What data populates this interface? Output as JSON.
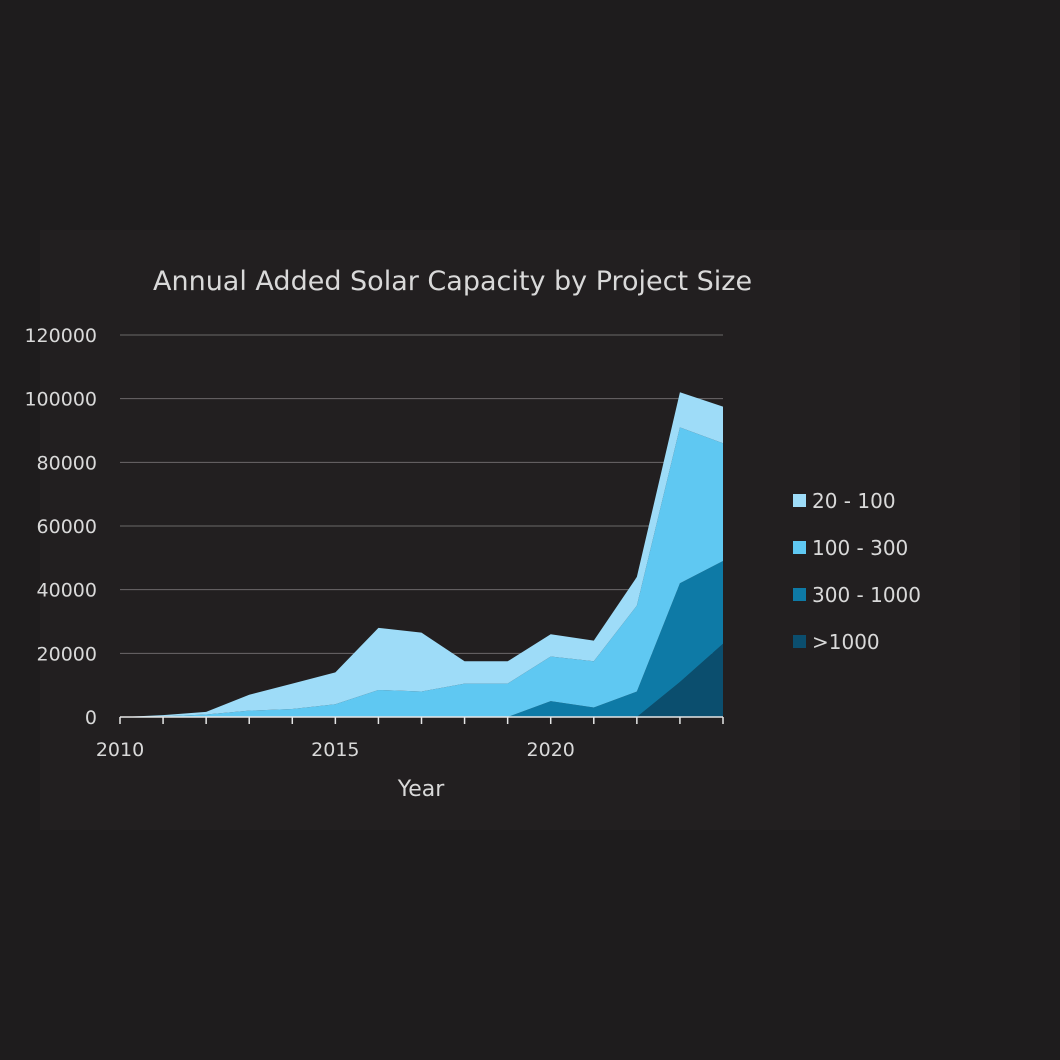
{
  "chart_data": {
    "type": "area",
    "stacked": true,
    "title": "Annual Added Solar Capacity by Project Size",
    "xlabel": "Year",
    "ylabel": "",
    "x": [
      2010,
      2011,
      2012,
      2013,
      2014,
      2015,
      2016,
      2017,
      2018,
      2019,
      2020,
      2021,
      2022,
      2023,
      2024
    ],
    "xlim": [
      2010,
      2024
    ],
    "ylim": [
      0,
      120000
    ],
    "x_ticks": [
      2010,
      2015,
      2020
    ],
    "y_ticks": [
      0,
      20000,
      40000,
      60000,
      80000,
      100000,
      120000
    ],
    "y_tick_labels": [
      "0",
      "20000",
      "40000",
      "60000",
      "80000",
      "100000",
      "120000"
    ],
    "grid": true,
    "legend_position": "right",
    "series": [
      {
        "name": ">1000",
        "color": "#0b4e6e",
        "values": [
          0,
          0,
          0,
          0,
          0,
          0,
          0,
          0,
          0,
          0,
          0,
          0,
          0,
          11000,
          23000
        ]
      },
      {
        "name": "300 - 1000",
        "color": "#0e7aa6",
        "values": [
          0,
          0,
          0,
          0,
          0,
          0,
          0,
          0,
          0,
          0,
          5000,
          3000,
          8000,
          31000,
          26000
        ]
      },
      {
        "name": "100 - 300",
        "color": "#5fc8f2",
        "values": [
          0,
          200,
          800,
          2000,
          2500,
          4000,
          8500,
          8000,
          10500,
          10500,
          14000,
          14500,
          27000,
          49000,
          37000
        ]
      },
      {
        "name": "20 - 100",
        "color": "#9edcf8",
        "values": [
          0,
          400,
          800,
          5000,
          8000,
          10000,
          19500,
          18500,
          7000,
          7000,
          7000,
          6500,
          9000,
          11000,
          11500
        ]
      }
    ],
    "legend_order": [
      "20 - 100",
      "100 - 300",
      "300 - 1000",
      ">1000"
    ]
  }
}
